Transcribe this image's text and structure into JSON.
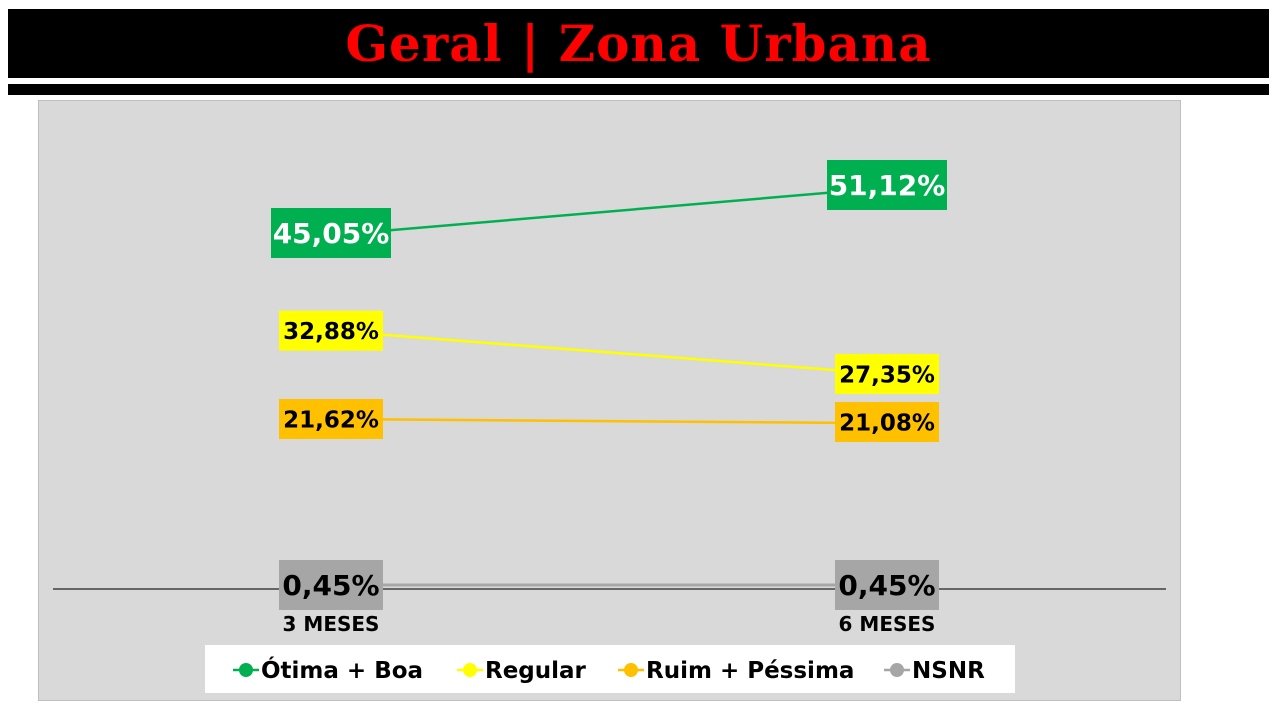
{
  "header": {
    "title": "Geral | Zona Urbana"
  },
  "chart_data": {
    "type": "line",
    "title": "",
    "categories": [
      "3 MESES",
      "6 MESES"
    ],
    "series": [
      {
        "name": "Ótima + Boa",
        "values": [
          45.05,
          51.12
        ],
        "labels": [
          "45,05%",
          "51,12%"
        ],
        "color": "#00b050",
        "label_text_color": "#ffffff"
      },
      {
        "name": "Regular",
        "values": [
          32.88,
          27.35
        ],
        "labels": [
          "32,88%",
          "27,35%"
        ],
        "color": "#ffff00",
        "label_text_color": "#000000"
      },
      {
        "name": "Ruim + Péssima",
        "values": [
          21.62,
          21.08
        ],
        "labels": [
          "21,62%",
          "21,08%"
        ],
        "color": "#ffc000",
        "label_text_color": "#000000"
      },
      {
        "name": "NSNR",
        "values": [
          0.45,
          0.45
        ],
        "labels": [
          "0,45%",
          "0,45%"
        ],
        "color": "#a6a6a6",
        "label_text_color": "#000000"
      }
    ],
    "grid": false,
    "legend_position": "bottom",
    "plot_background": "#d9d9d9"
  }
}
